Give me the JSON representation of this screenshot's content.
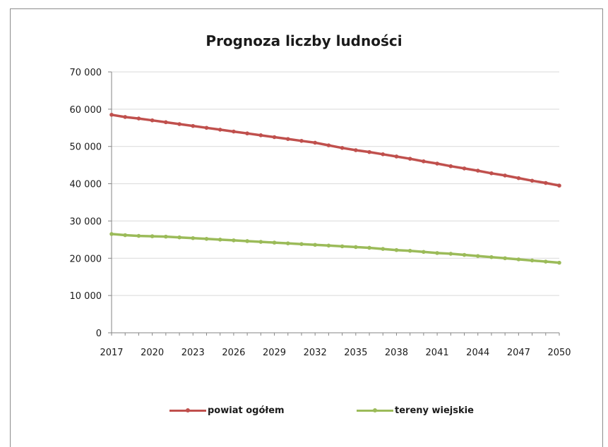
{
  "chart_data": {
    "type": "line",
    "title": "Prognoza liczby ludności",
    "xlabel": "",
    "ylabel": "",
    "ylim": [
      0,
      70000
    ],
    "yticks": [
      "0",
      "10 000",
      "20 000",
      "30 000",
      "40 000",
      "50 000",
      "60 000",
      "70 000"
    ],
    "xlim": [
      2017,
      2050
    ],
    "xticks": [
      "2017",
      "2020",
      "2023",
      "2026",
      "2029",
      "2032",
      "2035",
      "2038",
      "2041",
      "2044",
      "2047",
      "2050"
    ],
    "grid": true,
    "legend": "bottom",
    "x": [
      2017,
      2018,
      2019,
      2020,
      2021,
      2022,
      2023,
      2024,
      2025,
      2026,
      2027,
      2028,
      2029,
      2030,
      2031,
      2032,
      2033,
      2034,
      2035,
      2036,
      2037,
      2038,
      2039,
      2040,
      2041,
      2042,
      2043,
      2044,
      2045,
      2046,
      2047,
      2048,
      2049,
      2050
    ],
    "series": [
      {
        "name": "powiat ogółem",
        "color": "#c0504d",
        "values": [
          58500,
          57900,
          57500,
          57000,
          56500,
          56000,
          55500,
          55000,
          54500,
          54000,
          53500,
          53000,
          52500,
          52000,
          51500,
          51000,
          50300,
          49600,
          49000,
          48500,
          47900,
          47300,
          46700,
          46000,
          45400,
          44700,
          44100,
          43500,
          42800,
          42200,
          41500,
          40800,
          40200,
          39500
        ]
      },
      {
        "name": "tereny wiejskie",
        "color": "#9bbb59",
        "values": [
          26500,
          26200,
          26000,
          25900,
          25800,
          25600,
          25400,
          25200,
          25000,
          24800,
          24600,
          24400,
          24200,
          24000,
          23800,
          23600,
          23400,
          23200,
          23000,
          22800,
          22500,
          22200,
          22000,
          21700,
          21400,
          21200,
          20900,
          20600,
          20300,
          20000,
          19700,
          19400,
          19100,
          18800
        ]
      }
    ]
  }
}
